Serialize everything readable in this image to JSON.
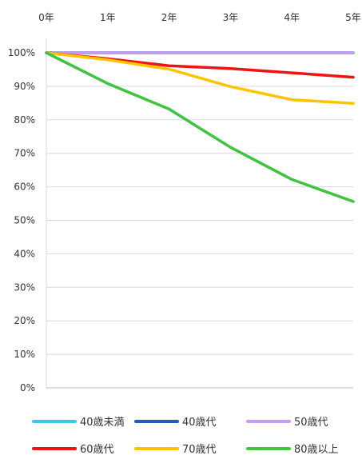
{
  "chart_data": {
    "type": "line",
    "title": "",
    "xlabel": "",
    "ylabel": "",
    "x": [
      "0年",
      "1年",
      "2年",
      "3年",
      "4年",
      "5年"
    ],
    "ylim": [
      0,
      100
    ],
    "yticks": [
      "0%",
      "10%",
      "20%",
      "30%",
      "40%",
      "50%",
      "60%",
      "70%",
      "80%",
      "90%",
      "100%"
    ],
    "grid": true,
    "legend_position": "bottom",
    "series": [
      {
        "name": "40歳未満",
        "color": "#3fc6f0",
        "values": [
          100,
          100,
          100,
          100,
          100,
          100
        ]
      },
      {
        "name": "40歳代",
        "color": "#1f5fb4",
        "values": [
          100,
          100,
          100,
          100,
          100,
          100
        ]
      },
      {
        "name": "50歳代",
        "color": "#c59ef0",
        "values": [
          100,
          100,
          100,
          100,
          100,
          100
        ]
      },
      {
        "name": "60歳代",
        "color": "#f01313",
        "values": [
          100,
          98.2,
          96.1,
          95.3,
          94.0,
          92.7
        ]
      },
      {
        "name": "70歳代",
        "color": "#ffc400",
        "values": [
          100,
          97.9,
          95.1,
          89.9,
          86.0,
          84.9
        ]
      },
      {
        "name": "80歳以上",
        "color": "#3fc43f",
        "values": [
          100,
          90.8,
          83.2,
          71.8,
          62.2,
          55.6
        ]
      }
    ]
  }
}
